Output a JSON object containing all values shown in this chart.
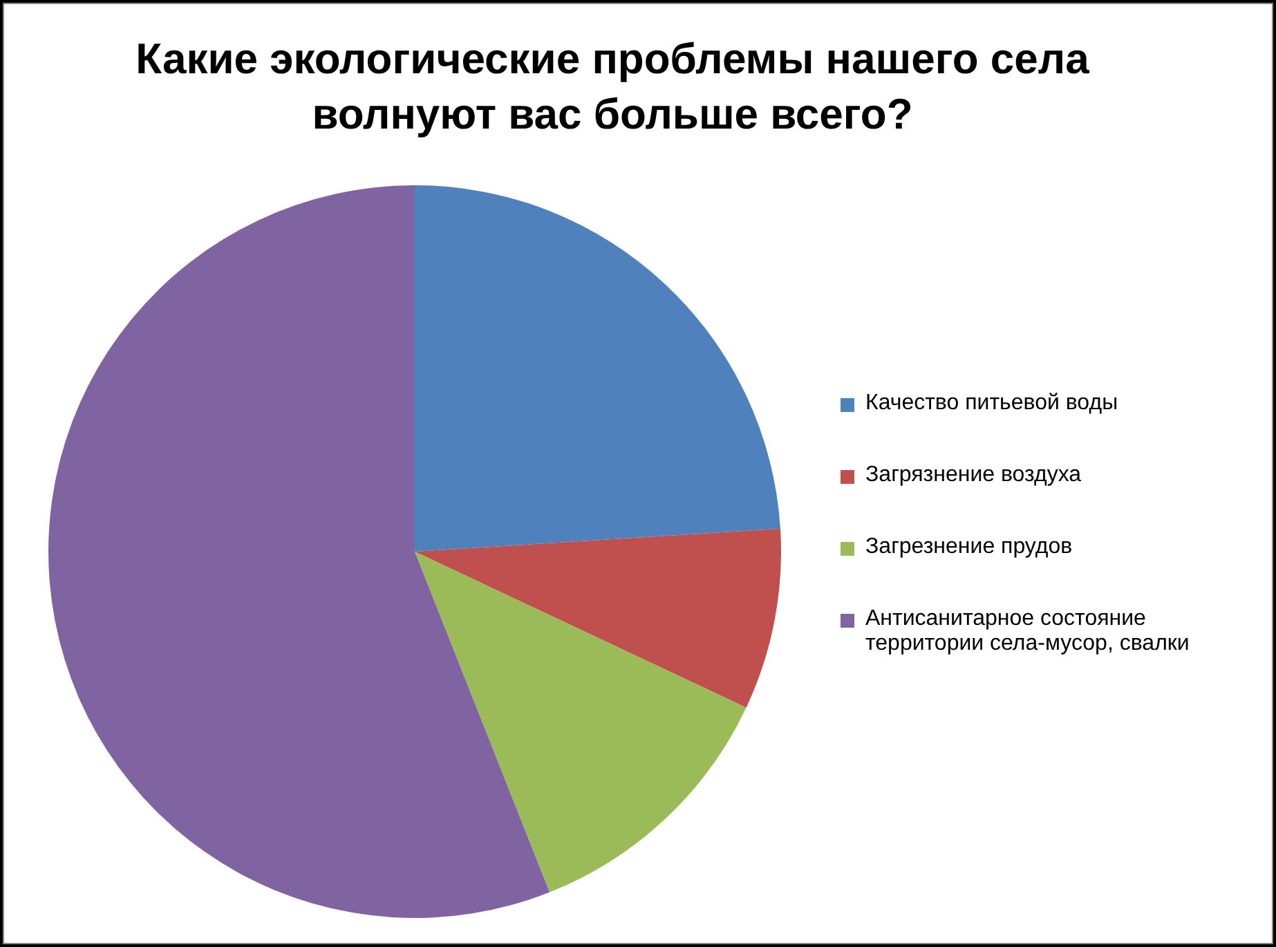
{
  "chart_data": {
    "type": "pie",
    "title": "Какие экологические проблемы нашего села волнуют вас больше всего?",
    "categories": [
      "Качество питьевой воды",
      "Загрязнение воздуха",
      "Загрезнение прудов",
      "Антисанитарное состояние территории села-мусор, свалки"
    ],
    "values": [
      24,
      8,
      12,
      56
    ],
    "colors": [
      "#4f81bd",
      "#c0504d",
      "#9bbb59",
      "#8064a2"
    ],
    "legend": "right"
  }
}
